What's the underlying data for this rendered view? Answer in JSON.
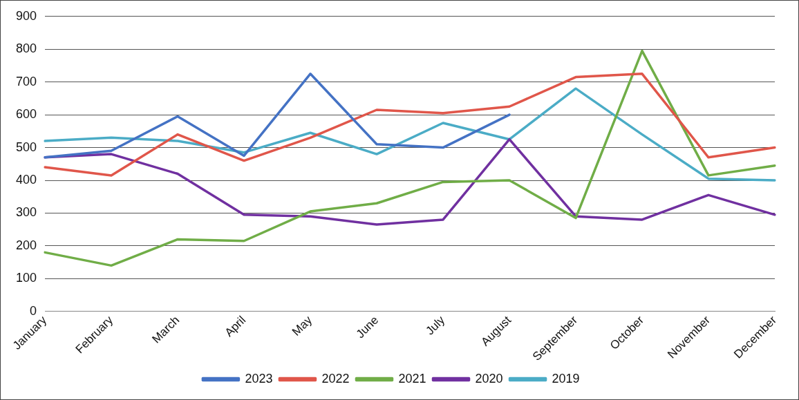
{
  "chart_data": {
    "type": "line",
    "categories": [
      "January",
      "February",
      "March",
      "April",
      "May",
      "June",
      "July",
      "August",
      "September",
      "October",
      "November",
      "December"
    ],
    "series": [
      {
        "name": "2023",
        "color": "#4472c4",
        "values": [
          470,
          490,
          595,
          475,
          725,
          510,
          500,
          600,
          null,
          null,
          null,
          null
        ]
      },
      {
        "name": "2022",
        "color": "#e0564a",
        "values": [
          440,
          415,
          540,
          460,
          530,
          615,
          605,
          625,
          715,
          725,
          470,
          500
        ]
      },
      {
        "name": "2021",
        "color": "#70ad47",
        "values": [
          180,
          140,
          220,
          215,
          305,
          330,
          395,
          400,
          285,
          795,
          415,
          445
        ]
      },
      {
        "name": "2020",
        "color": "#7030a0",
        "values": [
          470,
          480,
          420,
          295,
          290,
          265,
          280,
          525,
          290,
          280,
          355,
          295
        ]
      },
      {
        "name": "2019",
        "color": "#4bacc6",
        "values": [
          520,
          530,
          520,
          485,
          545,
          480,
          575,
          525,
          680,
          540,
          405,
          400
        ]
      }
    ],
    "ylim": [
      0,
      900
    ],
    "yticks": [
      0,
      100,
      200,
      300,
      400,
      500,
      600,
      700,
      800,
      900
    ],
    "grid": "y",
    "legend": "bottom",
    "marker": "none",
    "line_style": "solid"
  }
}
